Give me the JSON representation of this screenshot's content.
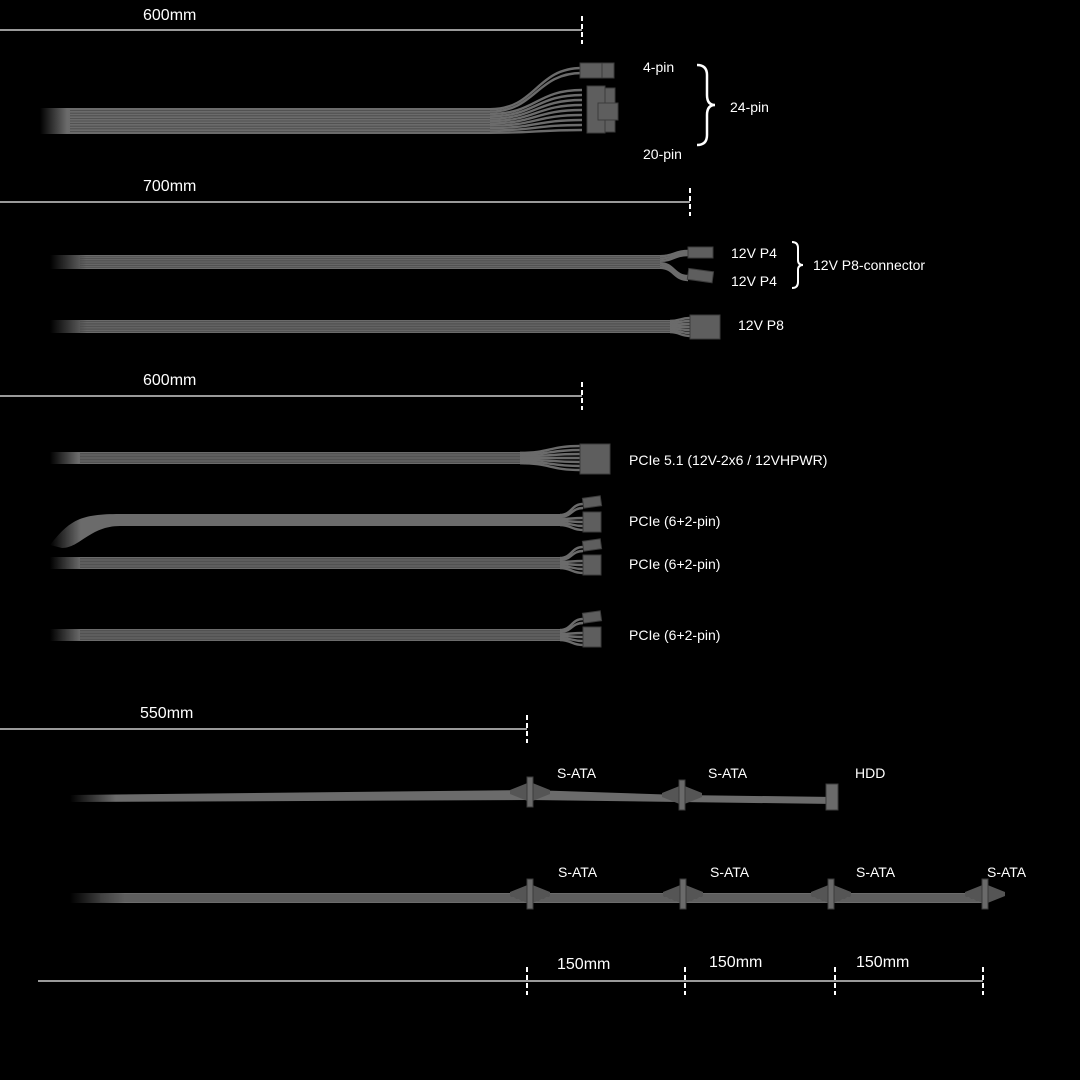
{
  "colors": {
    "background": "#000000",
    "cable": "#6b6b6b",
    "dimension_line": "#9a9a9a",
    "tick": "#ffffff",
    "text": "#ffffff"
  },
  "dimensions": {
    "atx": "600mm",
    "cpu": "700mm",
    "pcie": "600mm",
    "sata": "550mm",
    "sata_spacing": [
      "150mm",
      "150mm",
      "150mm"
    ]
  },
  "atx": {
    "top_label": "4-pin",
    "bottom_label": "20-pin",
    "group_label": "24-pin"
  },
  "cpu": {
    "p4_a": "12V P4",
    "p4_b": "12V P4",
    "group_label": "12V P8-connector",
    "p8": "12V P8"
  },
  "pcie": {
    "pcie5": "PCIe 5.1 (12V-2x6 / 12VHPWR)",
    "pcie_a": "PCIe (6+2-pin)",
    "pcie_b": "PCIe (6+2-pin)",
    "pcie_c": "PCIe (6+2-pin)"
  },
  "sata1": {
    "c1": "S-ATA",
    "c2": "S-ATA",
    "end": "HDD"
  },
  "sata2": {
    "c1": "S-ATA",
    "c2": "S-ATA",
    "c3": "S-ATA",
    "c4": "S-ATA"
  }
}
